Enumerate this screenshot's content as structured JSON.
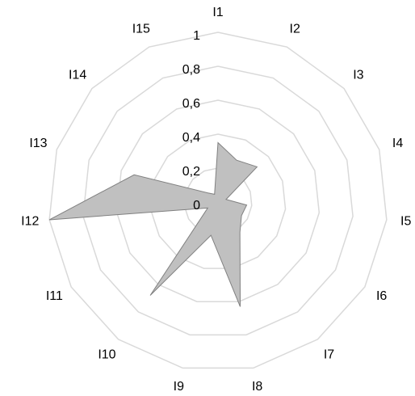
{
  "chart_data": {
    "type": "radar",
    "categories": [
      "I1",
      "I2",
      "I3",
      "I4",
      "I5",
      "I6",
      "I7",
      "I8",
      "I9",
      "I10",
      "I11",
      "I12",
      "I13",
      "I14",
      "I15"
    ],
    "values": [
      0.35,
      0.27,
      0.31,
      0.05,
      0.17,
      0.16,
      0.22,
      0.63,
      0.2,
      0.68,
      0.07,
      1,
      0.52,
      0.08,
      0.05
    ],
    "color": "#c0c0c0",
    "ylim": [
      0,
      1
    ],
    "yticks": [
      0,
      {
        "value": 0.2,
        "label": "0,2"
      },
      {
        "value": 0.4,
        "label": "0,4"
      },
      {
        "value": 0.6,
        "label": "0,6"
      },
      {
        "value": 0.8,
        "label": "0,8"
      },
      1
    ],
    "grid": true
  }
}
